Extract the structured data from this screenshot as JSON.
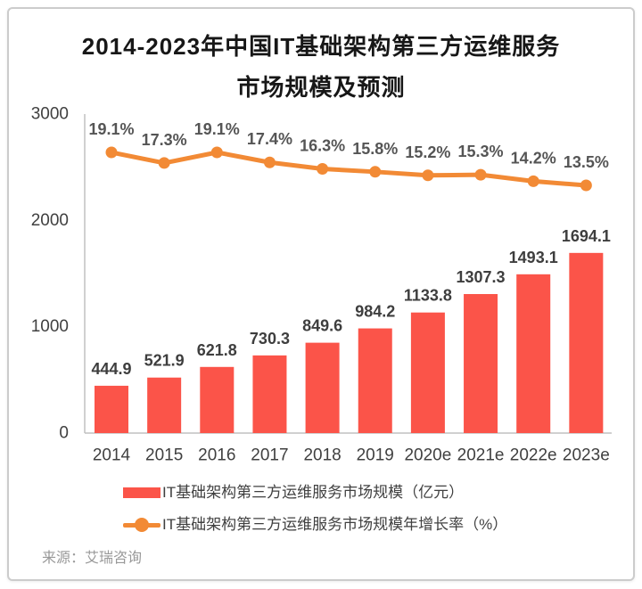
{
  "title": {
    "line1": "2014-2023年中国IT基础架构第三方运维服务",
    "line2": "市场规模及预测"
  },
  "source": "来源：艾瑞咨询",
  "legend": {
    "items": [
      {
        "label": "IT基础架构第三方运维服务市场规模（亿元）",
        "series": "bar"
      },
      {
        "label": "IT基础架构第三方运维服务市场规模年增长率（%）",
        "series": "line"
      }
    ]
  },
  "colors": {
    "bar": "#FB5449",
    "line": "#F28A35",
    "axis": "#C0C0C0",
    "tick_text": "#404040",
    "value_label_text": "#3E3E3E",
    "pct_label_text": "#555555",
    "title_text": "#171717",
    "source_text": "#999999",
    "card_border": "#CCCCCC"
  },
  "chart_data": {
    "type": "bar+line",
    "title": "2014-2023年中国IT基础架构第三方运维服务市场规模及预测",
    "categories": [
      "2014",
      "2015",
      "2016",
      "2017",
      "2018",
      "2019",
      "2020e",
      "2021e",
      "2022e",
      "2023e"
    ],
    "series": [
      {
        "name": "IT基础架构第三方运维服务市场规模（亿元）",
        "type": "bar",
        "unit": "亿元",
        "values": [
          444.9,
          521.9,
          621.8,
          730.3,
          849.6,
          984.2,
          1133.8,
          1307.3,
          1493.1,
          1694.1
        ]
      },
      {
        "name": "IT基础架构第三方运维服务市场规模年增长率（%）",
        "type": "line",
        "unit": "%",
        "values": [
          19.1,
          17.3,
          19.1,
          17.4,
          16.3,
          15.8,
          15.2,
          15.3,
          14.2,
          13.5
        ]
      }
    ],
    "xlabel": "",
    "ylabel": "",
    "ylim": [
      0,
      3000
    ],
    "yticks": [
      0,
      1000,
      2000,
      3000
    ],
    "grid": false,
    "legend_position": "bottom"
  }
}
